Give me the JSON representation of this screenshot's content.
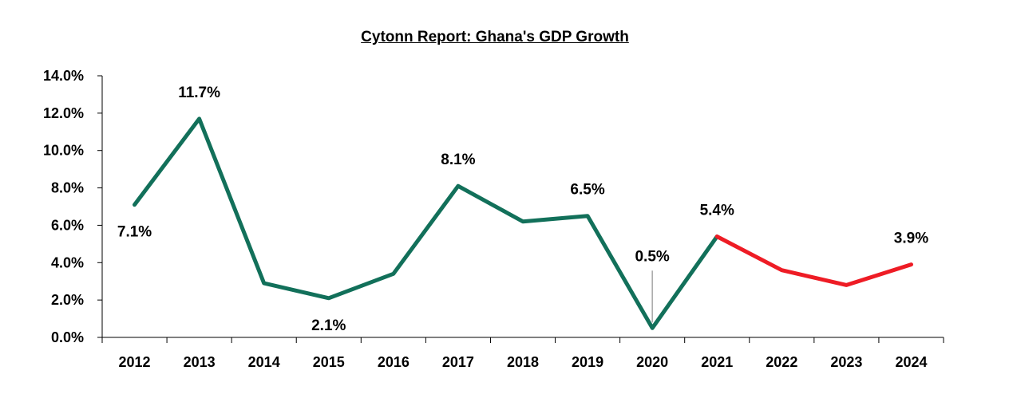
{
  "chart_data": {
    "type": "line",
    "title": "Cytonn Report: Ghana's GDP Growth",
    "xlabel": "",
    "ylabel": "",
    "categories": [
      "2012",
      "2013",
      "2014",
      "2015",
      "2016",
      "2017",
      "2018",
      "2019",
      "2020",
      "2021",
      "2022",
      "2023",
      "2024"
    ],
    "values": [
      7.1,
      11.7,
      2.9,
      2.1,
      3.4,
      8.1,
      6.2,
      6.5,
      0.5,
      5.4,
      3.6,
      2.8,
      3.9
    ],
    "ylim": [
      0,
      14
    ],
    "y_ticks": [
      "0.0%",
      "2.0%",
      "4.0%",
      "6.0%",
      "8.0%",
      "10.0%",
      "12.0%",
      "14.0%"
    ],
    "data_labels": [
      {
        "category": "2012",
        "text": "7.1%"
      },
      {
        "category": "2013",
        "text": "11.7%"
      },
      {
        "category": "2015",
        "text": "2.1%"
      },
      {
        "category": "2017",
        "text": "8.1%"
      },
      {
        "category": "2019",
        "text": "6.5%"
      },
      {
        "category": "2020",
        "text": "0.5%"
      },
      {
        "category": "2021",
        "text": "5.4%"
      },
      {
        "category": "2024",
        "text": "3.9%"
      }
    ],
    "segments": [
      {
        "from": "2012",
        "to": "2021",
        "color": "#12705a"
      },
      {
        "from": "2021",
        "to": "2024",
        "color": "#ee1c25"
      }
    ],
    "grid": false,
    "legend": "none"
  }
}
